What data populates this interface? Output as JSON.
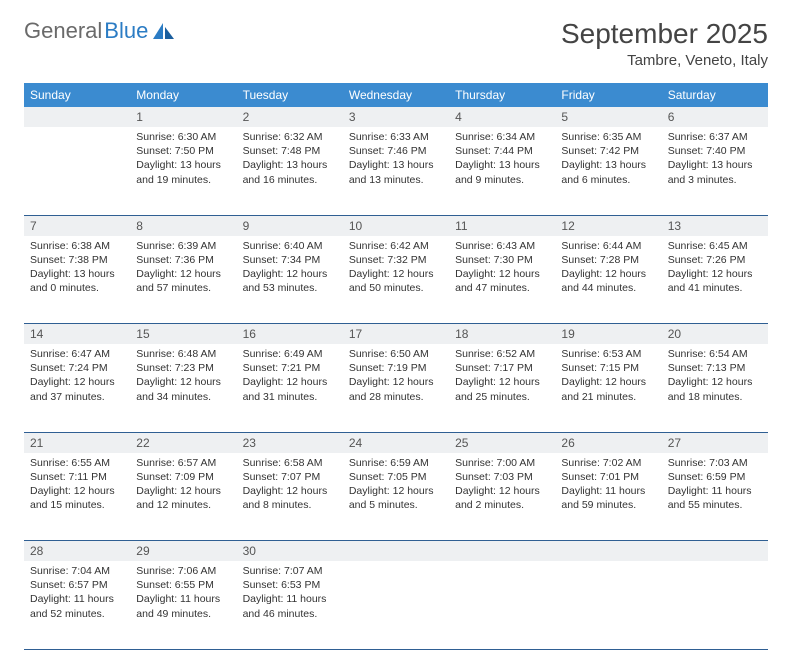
{
  "logo": {
    "text1": "General",
    "text2": "Blue"
  },
  "title": "September 2025",
  "location": "Tambre, Veneto, Italy",
  "colors": {
    "header_bg": "#3b8bd0",
    "header_text": "#ffffff",
    "daynum_bg": "#eef0f2",
    "daynum_text": "#555555",
    "border": "#2f5f93",
    "body_text": "#333333",
    "logo_gray": "#6a6a6a",
    "logo_blue": "#2b7cc4"
  },
  "weekdays": [
    "Sunday",
    "Monday",
    "Tuesday",
    "Wednesday",
    "Thursday",
    "Friday",
    "Saturday"
  ],
  "weeks": [
    [
      null,
      {
        "n": "1",
        "sr": "6:30 AM",
        "ss": "7:50 PM",
        "dl": "13 hours and 19 minutes."
      },
      {
        "n": "2",
        "sr": "6:32 AM",
        "ss": "7:48 PM",
        "dl": "13 hours and 16 minutes."
      },
      {
        "n": "3",
        "sr": "6:33 AM",
        "ss": "7:46 PM",
        "dl": "13 hours and 13 minutes."
      },
      {
        "n": "4",
        "sr": "6:34 AM",
        "ss": "7:44 PM",
        "dl": "13 hours and 9 minutes."
      },
      {
        "n": "5",
        "sr": "6:35 AM",
        "ss": "7:42 PM",
        "dl": "13 hours and 6 minutes."
      },
      {
        "n": "6",
        "sr": "6:37 AM",
        "ss": "7:40 PM",
        "dl": "13 hours and 3 minutes."
      }
    ],
    [
      {
        "n": "7",
        "sr": "6:38 AM",
        "ss": "7:38 PM",
        "dl": "13 hours and 0 minutes."
      },
      {
        "n": "8",
        "sr": "6:39 AM",
        "ss": "7:36 PM",
        "dl": "12 hours and 57 minutes."
      },
      {
        "n": "9",
        "sr": "6:40 AM",
        "ss": "7:34 PM",
        "dl": "12 hours and 53 minutes."
      },
      {
        "n": "10",
        "sr": "6:42 AM",
        "ss": "7:32 PM",
        "dl": "12 hours and 50 minutes."
      },
      {
        "n": "11",
        "sr": "6:43 AM",
        "ss": "7:30 PM",
        "dl": "12 hours and 47 minutes."
      },
      {
        "n": "12",
        "sr": "6:44 AM",
        "ss": "7:28 PM",
        "dl": "12 hours and 44 minutes."
      },
      {
        "n": "13",
        "sr": "6:45 AM",
        "ss": "7:26 PM",
        "dl": "12 hours and 41 minutes."
      }
    ],
    [
      {
        "n": "14",
        "sr": "6:47 AM",
        "ss": "7:24 PM",
        "dl": "12 hours and 37 minutes."
      },
      {
        "n": "15",
        "sr": "6:48 AM",
        "ss": "7:23 PM",
        "dl": "12 hours and 34 minutes."
      },
      {
        "n": "16",
        "sr": "6:49 AM",
        "ss": "7:21 PM",
        "dl": "12 hours and 31 minutes."
      },
      {
        "n": "17",
        "sr": "6:50 AM",
        "ss": "7:19 PM",
        "dl": "12 hours and 28 minutes."
      },
      {
        "n": "18",
        "sr": "6:52 AM",
        "ss": "7:17 PM",
        "dl": "12 hours and 25 minutes."
      },
      {
        "n": "19",
        "sr": "6:53 AM",
        "ss": "7:15 PM",
        "dl": "12 hours and 21 minutes."
      },
      {
        "n": "20",
        "sr": "6:54 AM",
        "ss": "7:13 PM",
        "dl": "12 hours and 18 minutes."
      }
    ],
    [
      {
        "n": "21",
        "sr": "6:55 AM",
        "ss": "7:11 PM",
        "dl": "12 hours and 15 minutes."
      },
      {
        "n": "22",
        "sr": "6:57 AM",
        "ss": "7:09 PM",
        "dl": "12 hours and 12 minutes."
      },
      {
        "n": "23",
        "sr": "6:58 AM",
        "ss": "7:07 PM",
        "dl": "12 hours and 8 minutes."
      },
      {
        "n": "24",
        "sr": "6:59 AM",
        "ss": "7:05 PM",
        "dl": "12 hours and 5 minutes."
      },
      {
        "n": "25",
        "sr": "7:00 AM",
        "ss": "7:03 PM",
        "dl": "12 hours and 2 minutes."
      },
      {
        "n": "26",
        "sr": "7:02 AM",
        "ss": "7:01 PM",
        "dl": "11 hours and 59 minutes."
      },
      {
        "n": "27",
        "sr": "7:03 AM",
        "ss": "6:59 PM",
        "dl": "11 hours and 55 minutes."
      }
    ],
    [
      {
        "n": "28",
        "sr": "7:04 AM",
        "ss": "6:57 PM",
        "dl": "11 hours and 52 minutes."
      },
      {
        "n": "29",
        "sr": "7:06 AM",
        "ss": "6:55 PM",
        "dl": "11 hours and 49 minutes."
      },
      {
        "n": "30",
        "sr": "7:07 AM",
        "ss": "6:53 PM",
        "dl": "11 hours and 46 minutes."
      },
      null,
      null,
      null,
      null
    ]
  ],
  "labels": {
    "sunrise": "Sunrise:",
    "sunset": "Sunset:",
    "daylight": "Daylight:"
  }
}
